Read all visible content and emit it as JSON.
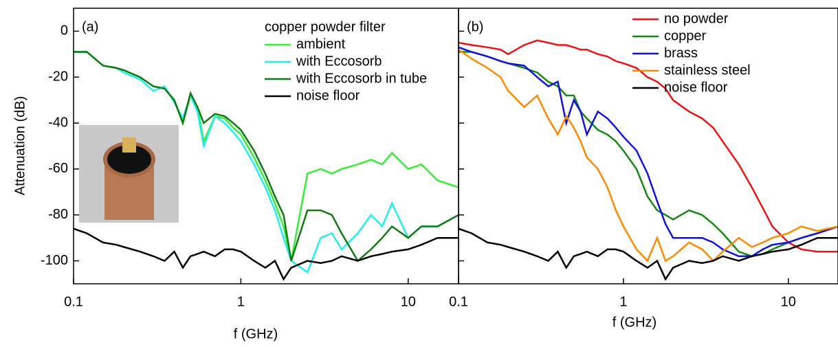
{
  "chart_data": [
    {
      "type": "line",
      "annotation": "(a)",
      "y_label": "Attenuation (dB)",
      "x_label": "f (GHz)",
      "legend_title": "copper powder filter",
      "log_x": true,
      "xlim": [
        0.1,
        20
      ],
      "xticks": [
        0.1,
        1,
        10
      ],
      "ylim": [
        -110,
        10
      ],
      "yticks": [
        -100,
        -80,
        -60,
        -40,
        -20,
        0
      ],
      "x": [
        0.1,
        0.12,
        0.15,
        0.18,
        0.2,
        0.25,
        0.3,
        0.35,
        0.4,
        0.45,
        0.5,
        0.55,
        0.6,
        0.7,
        0.8,
        0.9,
        1,
        1.2,
        1.4,
        1.6,
        1.8,
        2,
        2.5,
        3,
        3.5,
        4,
        5,
        6,
        7,
        8,
        10,
        12,
        15,
        20
      ],
      "series": [
        {
          "name": "ambient",
          "color": "#33ee33",
          "values": [
            -9,
            -9,
            -15,
            -16,
            -17,
            -20,
            -24,
            -25,
            -30,
            -40,
            -28,
            -33,
            -48,
            -37,
            -38,
            -42,
            -45,
            -55,
            -65,
            -75,
            -85,
            -100,
            -62,
            -60,
            -62,
            -60,
            -58,
            -56,
            -58,
            -53,
            -60,
            -58,
            -65,
            -68
          ]
        },
        {
          "name": "with Eccosorb",
          "color": "#22eeee",
          "values": [
            -9,
            -9,
            -15,
            -16,
            -18,
            -21,
            -26,
            -24,
            -31,
            -38,
            -28,
            -35,
            -50,
            -37,
            -40,
            -44,
            -48,
            -58,
            -68,
            -78,
            -90,
            -100,
            -105,
            -90,
            -88,
            -95,
            -88,
            -80,
            -85,
            -75,
            -90,
            -85,
            -85,
            -80
          ]
        },
        {
          "name": "with Eccosorb in tube",
          "color": "#117711",
          "values": [
            -9,
            -9,
            -15,
            -16,
            -17,
            -20,
            -24,
            -25,
            -30,
            -40,
            -27,
            -33,
            -40,
            -36,
            -37,
            -40,
            -43,
            -52,
            -62,
            -72,
            -80,
            -100,
            -78,
            -78,
            -80,
            -88,
            -100,
            -95,
            -90,
            -85,
            -90,
            -85,
            -85,
            -80
          ]
        },
        {
          "name": "noise floor",
          "color": "#000000",
          "values": [
            -86,
            -88,
            -92,
            -93,
            -94,
            -96,
            -98,
            -100,
            -96,
            -103,
            -98,
            -97,
            -96,
            -98,
            -95,
            -95,
            -96,
            -100,
            -103,
            -100,
            -108,
            -103,
            -100,
            -101,
            -100,
            -98,
            -100,
            -98,
            -97,
            -96,
            -95,
            -93,
            -90,
            -90
          ]
        }
      ]
    },
    {
      "type": "line",
      "annotation": "(b)",
      "x_label": "f (GHz)",
      "log_x": true,
      "xlim": [
        0.1,
        20
      ],
      "xticks": [
        0.1,
        1,
        10
      ],
      "ylim": [
        -110,
        10
      ],
      "yticks": [
        -100,
        -80,
        -60,
        -40,
        -20,
        0
      ],
      "x": [
        0.1,
        0.12,
        0.15,
        0.18,
        0.2,
        0.25,
        0.3,
        0.35,
        0.4,
        0.45,
        0.5,
        0.55,
        0.6,
        0.7,
        0.8,
        0.9,
        1,
        1.2,
        1.4,
        1.6,
        1.8,
        2,
        2.5,
        3,
        3.5,
        4,
        5,
        6,
        7,
        8,
        10,
        12,
        15,
        20
      ],
      "series": [
        {
          "name": "no powder",
          "color": "#ee1111",
          "values": [
            -5,
            -6,
            -7,
            -8,
            -10,
            -6,
            -4,
            -5,
            -6,
            -6,
            -7,
            -8,
            -8,
            -10,
            -11,
            -13,
            -14,
            -16,
            -20,
            -22,
            -25,
            -30,
            -35,
            -38,
            -42,
            -48,
            -58,
            -68,
            -77,
            -85,
            -92,
            -95,
            -96,
            -96
          ]
        },
        {
          "name": "copper",
          "color": "#118811",
          "values": [
            -9,
            -9,
            -11,
            -13,
            -14,
            -16,
            -18,
            -22,
            -24,
            -28,
            -28,
            -35,
            -38,
            -43,
            -45,
            -48,
            -52,
            -60,
            -72,
            -78,
            -80,
            -82,
            -78,
            -80,
            -84,
            -88,
            -96,
            -98,
            -97,
            -95,
            -92,
            -90,
            -88,
            -85
          ]
        },
        {
          "name": "brass",
          "color": "#1111dd",
          "values": [
            -7,
            -9,
            -11,
            -13,
            -14,
            -15,
            -20,
            -24,
            -22,
            -40,
            -30,
            -35,
            -45,
            -35,
            -38,
            -42,
            -46,
            -52,
            -62,
            -74,
            -84,
            -90,
            -90,
            -90,
            -92,
            -95,
            -98,
            -98,
            -95,
            -93,
            -92,
            -90,
            -88,
            -85
          ]
        },
        {
          "name": "stainless steel",
          "color": "#ff8800",
          "values": [
            -8,
            -12,
            -16,
            -20,
            -26,
            -33,
            -28,
            -38,
            -45,
            -37,
            -42,
            -48,
            -55,
            -60,
            -68,
            -78,
            -85,
            -95,
            -100,
            -90,
            -100,
            -98,
            -92,
            -95,
            -100,
            -96,
            -90,
            -94,
            -92,
            -90,
            -88,
            -85,
            -87,
            -85
          ]
        },
        {
          "name": "noise floor",
          "color": "#000000",
          "values": [
            -86,
            -88,
            -92,
            -93,
            -94,
            -96,
            -98,
            -100,
            -96,
            -103,
            -98,
            -97,
            -96,
            -98,
            -95,
            -95,
            -96,
            -100,
            -103,
            -100,
            -108,
            -103,
            -100,
            -101,
            -100,
            -98,
            -100,
            -98,
            -97,
            -96,
            -95,
            -93,
            -90,
            -90
          ]
        }
      ]
    }
  ]
}
